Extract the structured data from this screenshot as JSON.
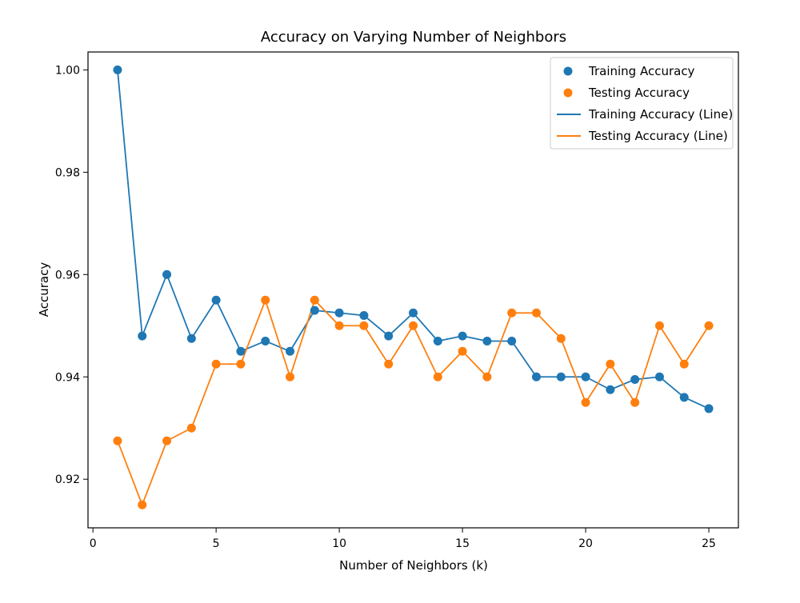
{
  "chart_data": {
    "type": "line",
    "title": "Accuracy on Varying Number of Neighbors",
    "xlabel": "Number of Neighbors (k)",
    "ylabel": "Accuracy",
    "xlim": [
      -0.2,
      26.2
    ],
    "ylim": [
      0.9105,
      1.0035
    ],
    "xticks": [
      0,
      5,
      10,
      15,
      20,
      25
    ],
    "yticks": [
      0.92,
      0.94,
      0.96,
      0.98,
      1.0
    ],
    "xtick_labels": [
      "0",
      "5",
      "10",
      "15",
      "20",
      "25"
    ],
    "ytick_labels": [
      "0.92",
      "0.94",
      "0.96",
      "0.98",
      "1.00"
    ],
    "grid": false,
    "legend_position": "top-right",
    "x": [
      1,
      2,
      3,
      4,
      5,
      6,
      7,
      8,
      9,
      10,
      11,
      12,
      13,
      14,
      15,
      16,
      17,
      18,
      19,
      20,
      21,
      22,
      23,
      24,
      25
    ],
    "series": [
      {
        "name": "Training Accuracy",
        "color": "#1f77b4",
        "values": [
          1.0,
          0.948,
          0.96,
          0.9475,
          0.955,
          0.945,
          0.947,
          0.945,
          0.953,
          0.9525,
          0.952,
          0.948,
          0.9525,
          0.947,
          0.948,
          0.947,
          0.947,
          0.94,
          0.94,
          0.94,
          0.9375,
          0.9395,
          0.94,
          0.936,
          0.9338
        ]
      },
      {
        "name": "Testing Accuracy",
        "color": "#ff7f0e",
        "values": [
          0.9275,
          0.915,
          0.9275,
          0.93,
          0.9425,
          0.9425,
          0.955,
          0.94,
          0.955,
          0.95,
          0.95,
          0.9425,
          0.95,
          0.94,
          0.945,
          0.94,
          0.9525,
          0.9525,
          0.9475,
          0.935,
          0.9425,
          0.935,
          0.95,
          0.9425,
          0.95
        ]
      }
    ],
    "legend": [
      {
        "label": "Training Accuracy",
        "kind": "marker",
        "color": "#1f77b4"
      },
      {
        "label": "Testing Accuracy",
        "kind": "marker",
        "color": "#ff7f0e"
      },
      {
        "label": "Training Accuracy (Line)",
        "kind": "line",
        "color": "#1f77b4"
      },
      {
        "label": "Testing Accuracy (Line)",
        "kind": "line",
        "color": "#ff7f0e"
      }
    ]
  }
}
